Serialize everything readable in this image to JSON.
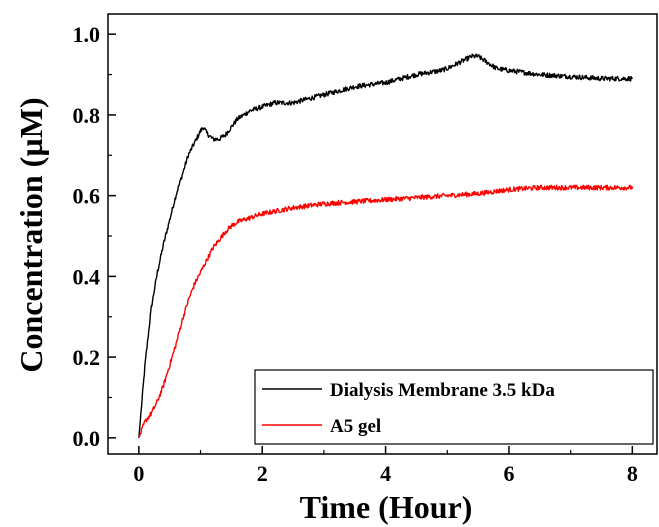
{
  "chart_data": {
    "type": "line",
    "title": "",
    "xlabel": "Time (Hour)",
    "ylabel": "Concentration (µM)",
    "xlim": [
      -0.5,
      8.4
    ],
    "ylim": [
      -0.04,
      1.05
    ],
    "xticks": [
      0,
      2,
      4,
      6,
      8
    ],
    "xtick_labels": [
      "0",
      "2",
      "4",
      "6",
      "8"
    ],
    "yticks": [
      0.0,
      0.2,
      0.4,
      0.6,
      0.8,
      1.0
    ],
    "ytick_labels": [
      "0.0",
      "0.2",
      "0.4",
      "0.6",
      "0.8",
      "1.0"
    ],
    "grid": false,
    "legend_position": "bottom-right",
    "series": [
      {
        "name": "Dialysis Membrane 3.5 kDa",
        "color": "#000000",
        "x": [
          0,
          0.1,
          0.2,
          0.3,
          0.4,
          0.5,
          0.6,
          0.7,
          0.8,
          0.9,
          1.0,
          1.05,
          1.1,
          1.2,
          1.3,
          1.4,
          1.5,
          1.6,
          1.8,
          2.0,
          2.2,
          2.5,
          3.0,
          3.5,
          4.0,
          4.5,
          4.9,
          5.0,
          5.2,
          5.4,
          5.5,
          5.6,
          5.8,
          6.0,
          6.5,
          7.0,
          7.5,
          8.0
        ],
        "y": [
          0.0,
          0.18,
          0.32,
          0.41,
          0.48,
          0.54,
          0.6,
          0.65,
          0.7,
          0.73,
          0.76,
          0.77,
          0.755,
          0.74,
          0.74,
          0.75,
          0.77,
          0.79,
          0.81,
          0.82,
          0.83,
          0.83,
          0.85,
          0.87,
          0.88,
          0.9,
          0.91,
          0.915,
          0.93,
          0.945,
          0.945,
          0.935,
          0.915,
          0.91,
          0.9,
          0.895,
          0.89,
          0.89
        ]
      },
      {
        "name": "A5 gel",
        "color": "#ff0000",
        "x": [
          0,
          0.05,
          0.1,
          0.2,
          0.3,
          0.4,
          0.5,
          0.6,
          0.7,
          0.8,
          0.9,
          1.0,
          1.1,
          1.2,
          1.3,
          1.4,
          1.5,
          1.6,
          1.8,
          2.0,
          2.5,
          3.0,
          3.5,
          4.0,
          4.5,
          5.0,
          5.5,
          6.0,
          6.5,
          7.0,
          7.5,
          8.0
        ],
        "y": [
          0.0,
          0.02,
          0.04,
          0.06,
          0.09,
          0.13,
          0.18,
          0.23,
          0.29,
          0.34,
          0.38,
          0.41,
          0.44,
          0.47,
          0.49,
          0.51,
          0.525,
          0.535,
          0.545,
          0.555,
          0.57,
          0.58,
          0.585,
          0.59,
          0.595,
          0.6,
          0.605,
          0.615,
          0.62,
          0.62,
          0.62,
          0.62
        ]
      }
    ]
  }
}
